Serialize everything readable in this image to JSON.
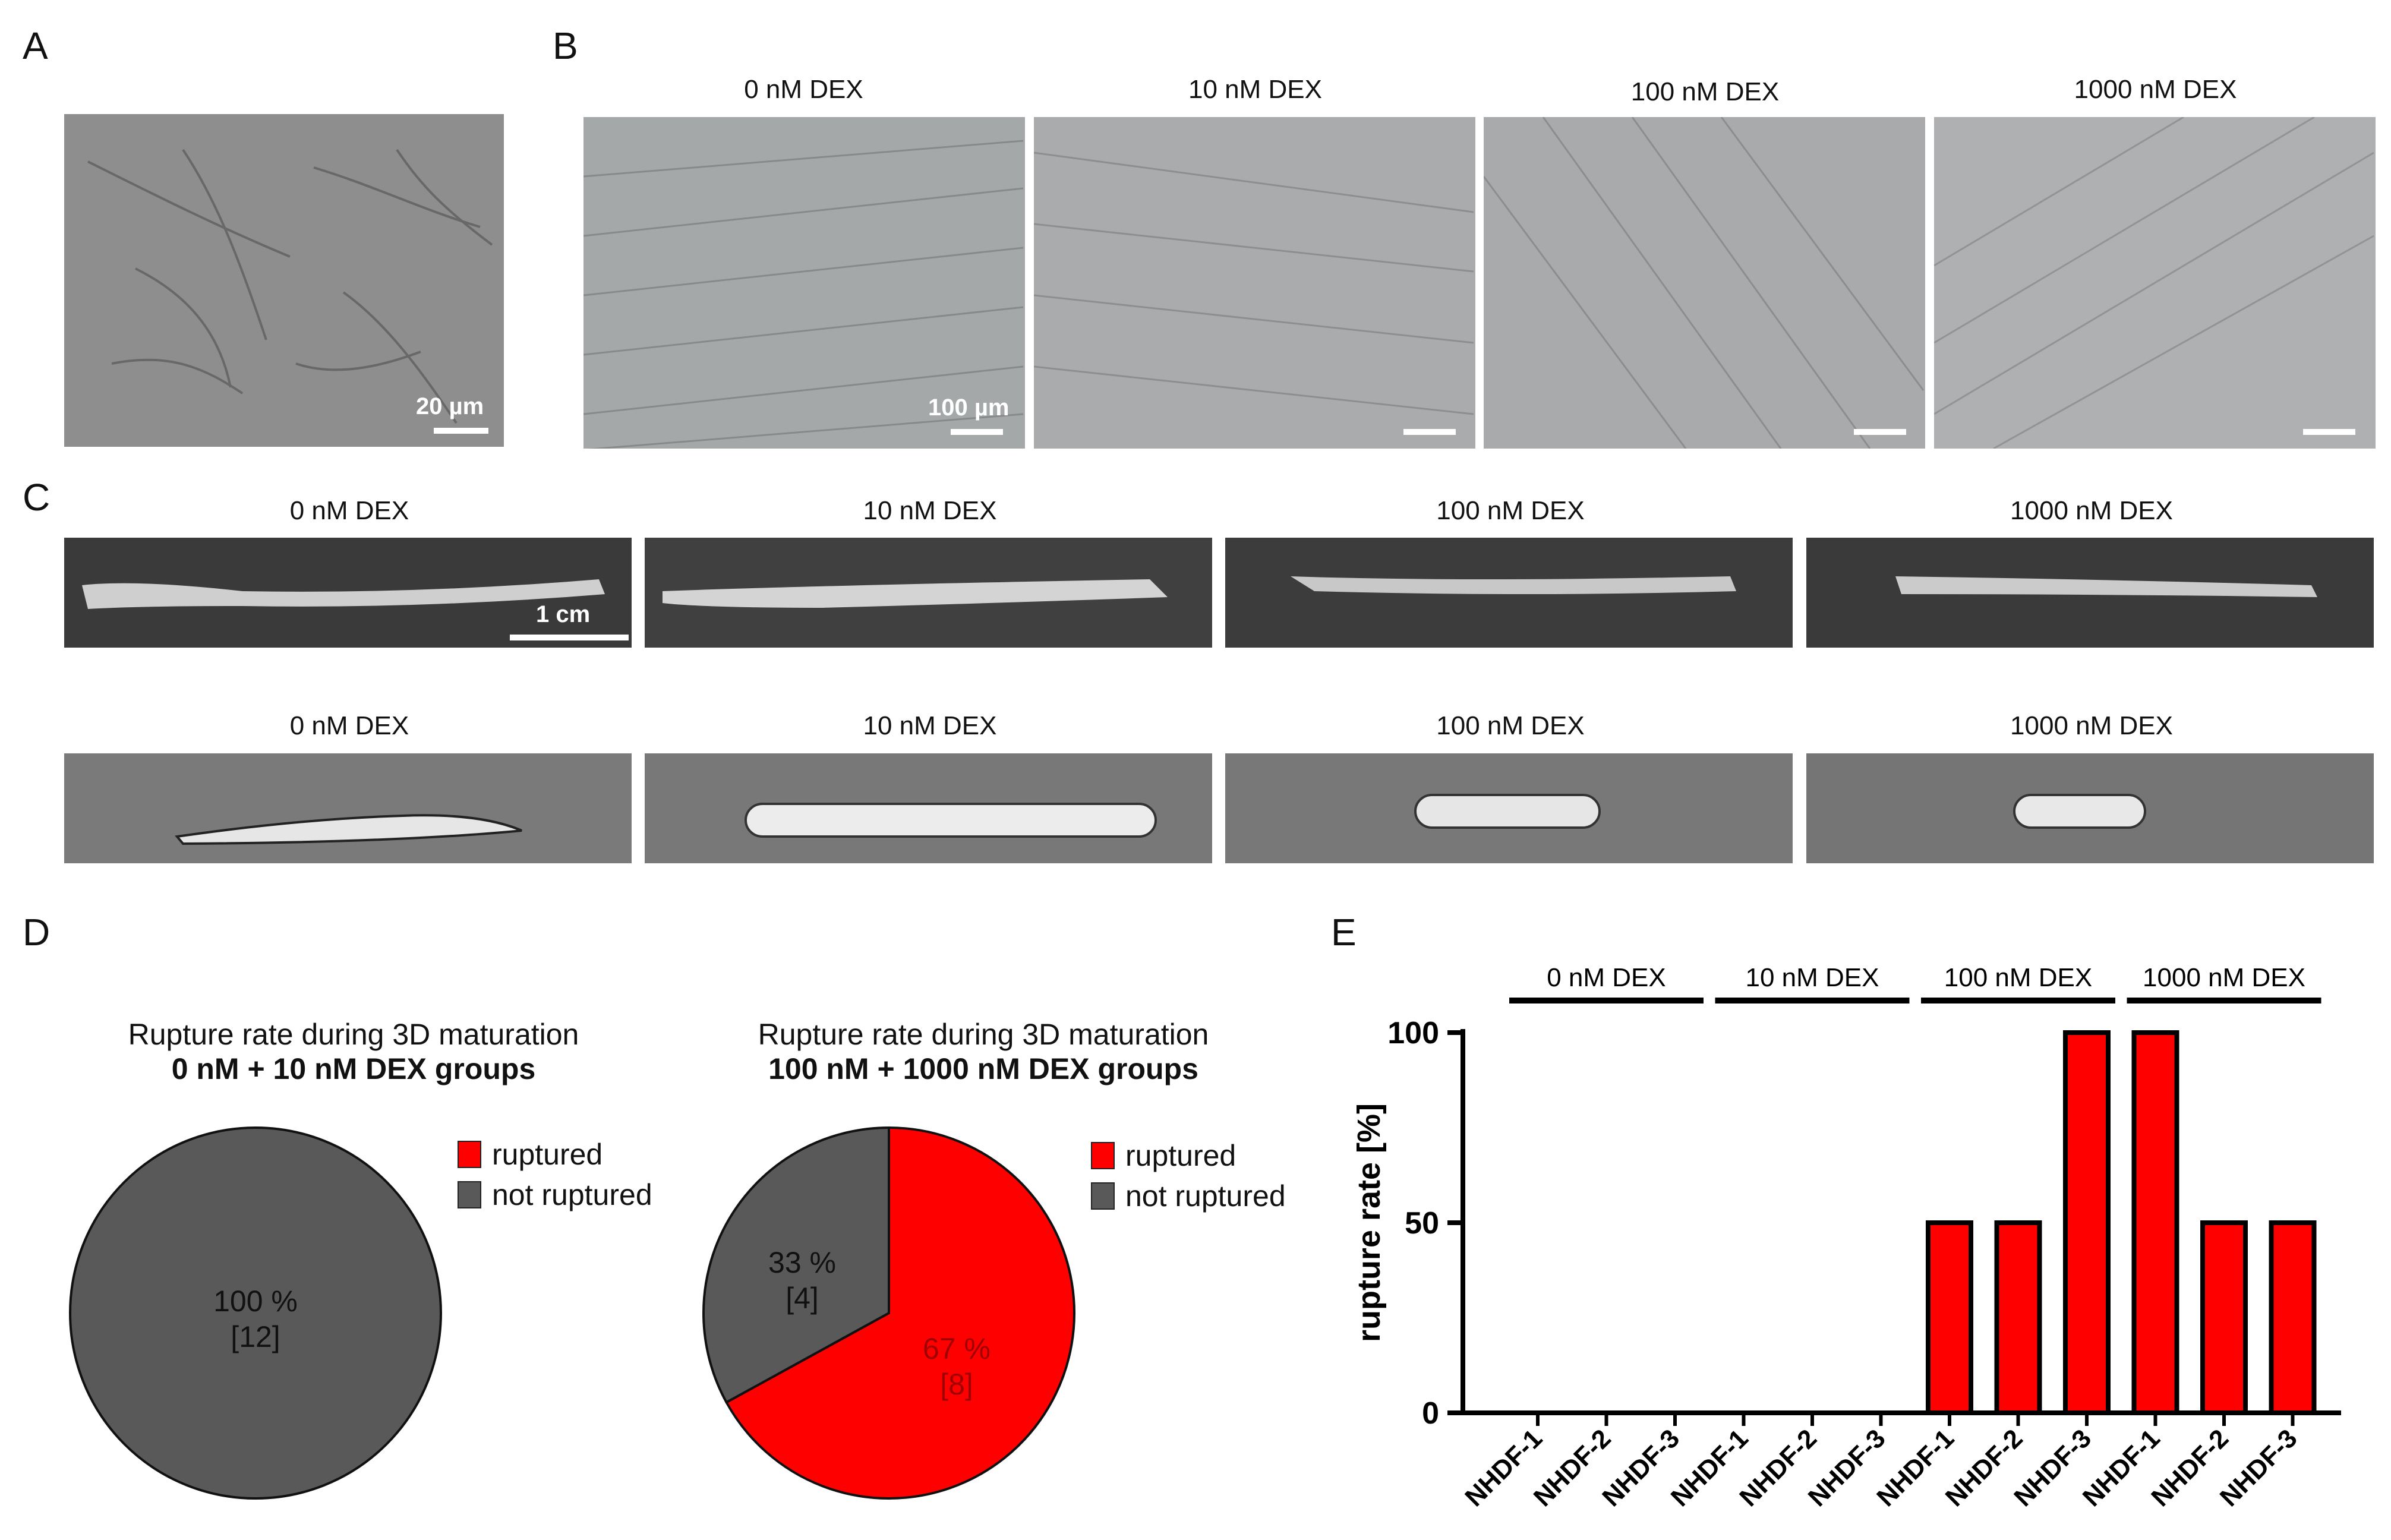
{
  "panels": {
    "A": {
      "label": "A",
      "scale_text": "20 µm"
    },
    "B": {
      "label": "B",
      "titles": [
        "0 nM DEX",
        "10 nM DEX",
        "100 nM DEX",
        "1000 nM DEX"
      ],
      "scale_text": "100 µm"
    },
    "C": {
      "label": "C",
      "row1_titles": [
        "0 nM DEX",
        "10 nM DEX",
        "100 nM DEX",
        "1000 nM DEX"
      ],
      "row2_titles": [
        "0 nM DEX",
        "10 nM DEX",
        "100 nM DEX",
        "1000 nM DEX"
      ],
      "scale_text": "1 cm"
    },
    "D": {
      "label": "D"
    },
    "E": {
      "label": "E"
    }
  },
  "colors": {
    "ruptured": "#ff0000",
    "not_ruptured": "#595959",
    "photo_gray": "#8c8c8c"
  },
  "chart_data": [
    {
      "type": "pie",
      "title_line1": "Rupture rate during 3D maturation",
      "title_line2": "0 nM + 10 nM DEX groups",
      "legend": [
        "ruptured",
        "not ruptured"
      ],
      "slices": [
        {
          "name": "not ruptured",
          "percent": 100,
          "percent_label": "100 %",
          "count_label": "[12]"
        }
      ]
    },
    {
      "type": "pie",
      "title_line1": "Rupture rate during 3D maturation",
      "title_line2": "100 nM + 1000 nM DEX groups",
      "legend": [
        "ruptured",
        "not ruptured"
      ],
      "slices": [
        {
          "name": "ruptured",
          "percent": 67,
          "percent_label": "67 %",
          "count_label": "[8]"
        },
        {
          "name": "not ruptured",
          "percent": 33,
          "percent_label": "33 %",
          "count_label": "[4]"
        }
      ]
    },
    {
      "type": "bar",
      "ylabel": "rupture rate [%]",
      "ylim": [
        0,
        100
      ],
      "yticks": [
        0,
        50,
        100
      ],
      "groups": [
        "0 nM DEX",
        "10 nM DEX",
        "100 nM DEX",
        "1000 nM DEX"
      ],
      "categories": [
        "NHDF-1",
        "NHDF-2",
        "NHDF-3",
        "NHDF-1",
        "NHDF-2",
        "NHDF-3",
        "NHDF-1",
        "NHDF-2",
        "NHDF-3",
        "NHDF-1",
        "NHDF-2",
        "NHDF-3"
      ],
      "values": [
        0,
        0,
        0,
        0,
        0,
        0,
        50,
        50,
        100,
        100,
        50,
        50
      ]
    }
  ]
}
